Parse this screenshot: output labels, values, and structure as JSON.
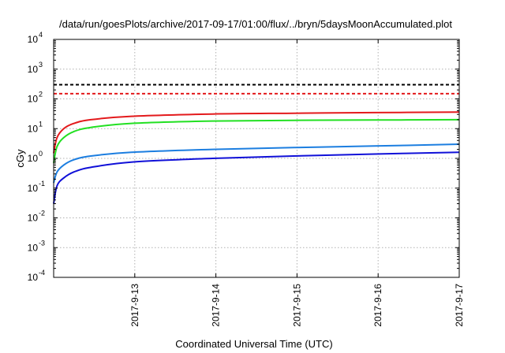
{
  "chart_data": {
    "type": "line",
    "title": "/data/run/goesPlots/archive/2017-09-17/01:00/flux/../bryn/5daysMoonAccumulated.plot",
    "xlabel": "Coordinated Universal Time (UTC)",
    "ylabel": "cGy",
    "y_scale": "log",
    "ylim": [
      0.0001,
      10000
    ],
    "y_ticks": [
      {
        "value": 0.0001,
        "base": "10",
        "exp": "-4"
      },
      {
        "value": 0.001,
        "base": "10",
        "exp": "-3"
      },
      {
        "value": 0.01,
        "base": "10",
        "exp": "-2"
      },
      {
        "value": 0.1,
        "base": "10",
        "exp": "-1"
      },
      {
        "value": 1,
        "base": "10",
        "exp": "0"
      },
      {
        "value": 10,
        "base": "10",
        "exp": "1"
      },
      {
        "value": 100,
        "base": "10",
        "exp": "2"
      },
      {
        "value": 1000,
        "base": "10",
        "exp": "3"
      },
      {
        "value": 10000,
        "base": "10",
        "exp": "4"
      }
    ],
    "xlim": [
      "2017-09-12 01:00",
      "2017-09-17 01:00"
    ],
    "x_ticks": [
      "2017-9-13",
      "2017-9-14",
      "2017-9-15",
      "2017-9-16",
      "2017-9-17"
    ],
    "grid": true,
    "series": [
      {
        "color": "#e31a1c",
        "style": "solid",
        "x": [
          "2017-09-12 01:00",
          "2017-09-12 02:00",
          "2017-09-12 04:00",
          "2017-09-12 07:00",
          "2017-09-12 12:00",
          "2017-09-13 00:00",
          "2017-09-14 00:00",
          "2017-09-15 00:00",
          "2017-09-16 00:00",
          "2017-09-17 01:00"
        ],
        "y": [
          1.5,
          5,
          10,
          15,
          20,
          26,
          31,
          33,
          34.5,
          36
        ]
      },
      {
        "color": "#22e022",
        "style": "solid",
        "x": [
          "2017-09-12 01:00",
          "2017-09-12 02:00",
          "2017-09-12 04:00",
          "2017-09-12 07:00",
          "2017-09-12 12:00",
          "2017-09-13 00:00",
          "2017-09-14 00:00",
          "2017-09-15 00:00",
          "2017-09-16 00:00",
          "2017-09-17 01:00"
        ],
        "y": [
          0.7,
          2.5,
          5,
          8,
          11,
          15,
          18,
          19,
          19.5,
          20
        ]
      },
      {
        "color": "#1c7ee0",
        "style": "solid",
        "x": [
          "2017-09-12 01:00",
          "2017-09-12 02:00",
          "2017-09-12 04:00",
          "2017-09-12 07:00",
          "2017-09-12 12:00",
          "2017-09-13 00:00",
          "2017-09-14 00:00",
          "2017-09-15 00:00",
          "2017-09-16 00:00",
          "2017-09-17 01:00"
        ],
        "y": [
          0.15,
          0.35,
          0.6,
          0.9,
          1.2,
          1.6,
          2.0,
          2.3,
          2.6,
          3.0
        ]
      },
      {
        "color": "#1010d8",
        "style": "solid",
        "x": [
          "2017-09-12 01:00",
          "2017-09-12 02:00",
          "2017-09-12 04:00",
          "2017-09-12 07:00",
          "2017-09-12 12:00",
          "2017-09-13 00:00",
          "2017-09-14 00:00",
          "2017-09-15 00:00",
          "2017-09-16 00:00",
          "2017-09-17 01:00"
        ],
        "y": [
          0.03,
          0.12,
          0.22,
          0.35,
          0.5,
          0.75,
          1.0,
          1.2,
          1.4,
          1.6
        ]
      },
      {
        "color": "#000000",
        "style": "dashed",
        "x": [
          "2017-09-12 01:00",
          "2017-09-17 01:00"
        ],
        "y": [
          300,
          300
        ]
      },
      {
        "color": "#e31a1c",
        "style": "dashed",
        "x": [
          "2017-09-12 01:00",
          "2017-09-17 01:00"
        ],
        "y": [
          150,
          150
        ]
      }
    ]
  }
}
